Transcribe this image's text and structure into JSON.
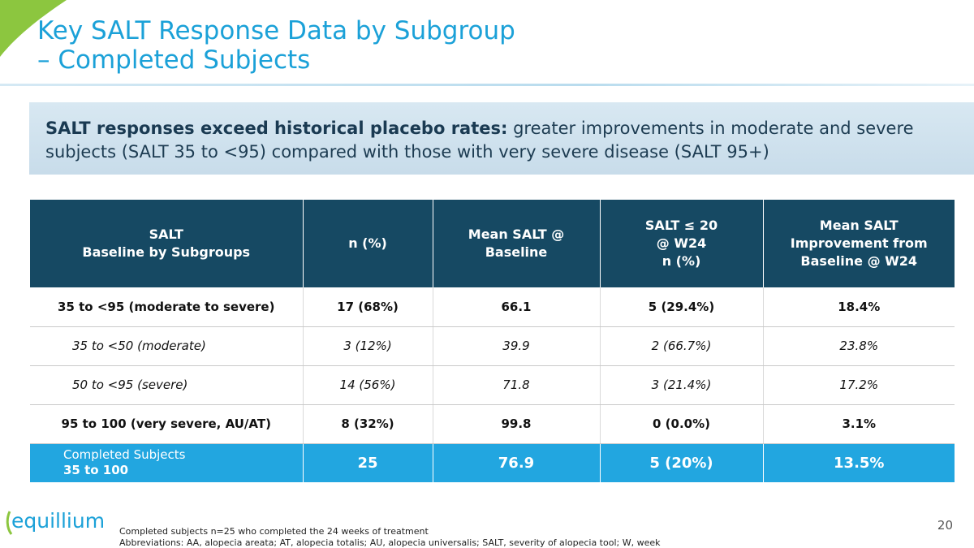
{
  "slide": {
    "title_line1": "Key SALT Response Data by Subgroup",
    "title_line2": "– Completed Subjects",
    "page_number": "20"
  },
  "callout": {
    "bold_text": "SALT responses exceed historical placebo rates:",
    "rest_text": " greater improvements in moderate and severe subjects (SALT 35 to <95) compared with those with very severe disease (SALT 95+)"
  },
  "table": {
    "headers": [
      [
        "SALT",
        "Baseline by Subgroups"
      ],
      [
        "n (%)"
      ],
      [
        "Mean SALT @",
        "Baseline"
      ],
      [
        "SALT ≤ 20",
        "@ W24",
        "n (%)"
      ],
      [
        "Mean SALT",
        "Improvement from",
        "Baseline @ W24"
      ]
    ],
    "rows": [
      {
        "style": "bold",
        "cells": [
          "35 to <95 (moderate to severe)",
          "17 (68%)",
          "66.1",
          "5 (29.4%)",
          "18.4%"
        ]
      },
      {
        "style": "italic",
        "cells": [
          "35 to <50 (moderate)",
          "3 (12%)",
          "39.9",
          "2 (66.7%)",
          "23.8%"
        ]
      },
      {
        "style": "italic",
        "cells": [
          "50 to <95 (severe)",
          "14 (56%)",
          "71.8",
          "3 (21.4%)",
          "17.2%"
        ]
      },
      {
        "style": "bold",
        "cells": [
          "95 to 100 (very severe, AU/AT)",
          "8 (32%)",
          "99.8",
          "0 (0.0%)",
          "3.1%"
        ]
      }
    ],
    "total": {
      "label": "Completed Subjects",
      "range": "35 to 100",
      "cells": [
        "25",
        "76.9",
        "5 (20%)",
        "13.5%"
      ]
    }
  },
  "footer": {
    "logo_text": "equillium",
    "note1": "Completed subjects n=25 who completed the 24 weeks of treatment",
    "note2": "Abbreviations: AA, alopecia areata; AT, alopecia totalis; AU, alopecia universalis; SALT, severity of alopecia tool; W, week"
  },
  "colors": {
    "accent_blue": "#1ba1d8",
    "header_navy": "#164963",
    "swoosh_green": "#8cc63f",
    "total_row_blue": "#22a6e0"
  }
}
